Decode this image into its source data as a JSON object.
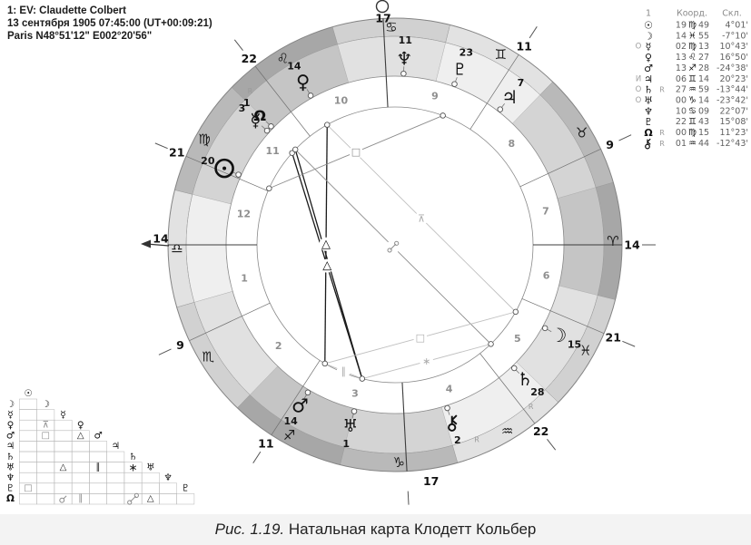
{
  "birth_info": {
    "line1": "1: EV: Claudette Colbert",
    "line2": "13 сентября 1905 07:45:00 (UT+00:09:21)",
    "line3": "Paris N48°51'12\" E002°20'56\""
  },
  "caption": {
    "figure_label": "Рис. 1.19.",
    "text": " Натальная карта Клодетт Кольбер"
  },
  "coord_table": {
    "headers": {
      "col1": "1",
      "col2": "Коорд.",
      "col3": "Скл."
    },
    "rows": [
      {
        "id": "sun",
        "marker": "",
        "glyph": "☉",
        "retro": "",
        "deg": "19",
        "sign": "♍",
        "min": "49",
        "decl": "4°01'"
      },
      {
        "id": "moon",
        "marker": "",
        "glyph": "☽",
        "retro": "",
        "deg": "14",
        "sign": "♓",
        "min": "55",
        "decl": "-7°10'"
      },
      {
        "id": "mercury",
        "marker": "O",
        "glyph": "☿",
        "retro": "",
        "deg": "02",
        "sign": "♍",
        "min": "13",
        "decl": "10°43'"
      },
      {
        "id": "venus",
        "marker": "",
        "glyph": "♀",
        "retro": "",
        "deg": "13",
        "sign": "♌",
        "min": "27",
        "decl": "16°50'"
      },
      {
        "id": "mars",
        "marker": "",
        "glyph": "♂",
        "retro": "",
        "deg": "13",
        "sign": "♐",
        "min": "28",
        "decl": "-24°38'"
      },
      {
        "id": "jupiter",
        "marker": "И",
        "glyph": "♃",
        "retro": "",
        "deg": "06",
        "sign": "♊",
        "min": "14",
        "decl": "20°23'"
      },
      {
        "id": "saturn",
        "marker": "O",
        "glyph": "♄",
        "retro": "R",
        "deg": "27",
        "sign": "♒",
        "min": "59",
        "decl": "-13°44'"
      },
      {
        "id": "uranus",
        "marker": "O",
        "glyph": "♅",
        "retro": "",
        "deg": "00",
        "sign": "♑",
        "min": "14",
        "decl": "-23°42'"
      },
      {
        "id": "neptune",
        "marker": "",
        "glyph": "♆",
        "retro": "",
        "deg": "10",
        "sign": "♋",
        "min": "09",
        "decl": "22°07'"
      },
      {
        "id": "pluto",
        "marker": "",
        "glyph": "♇",
        "retro": "",
        "deg": "22",
        "sign": "♊",
        "min": "43",
        "decl": "15°08'"
      },
      {
        "id": "node",
        "marker": "",
        "glyph": "Ω",
        "retro": "R",
        "deg": "00",
        "sign": "♍",
        "min": "15",
        "decl": "11°23'"
      },
      {
        "id": "chiron",
        "marker": "",
        "glyph": "chiron",
        "retro": "R",
        "deg": "01",
        "sign": "♒",
        "min": "44",
        "decl": "-12°43'"
      }
    ]
  },
  "wheel": {
    "signs": [
      {
        "name": "aries",
        "glyph": "♈",
        "element": "fire",
        "start": 0
      },
      {
        "name": "taurus",
        "glyph": "♉",
        "element": "earth",
        "start": 30
      },
      {
        "name": "gemini",
        "glyph": "♊",
        "element": "air",
        "start": 60
      },
      {
        "name": "cancer",
        "glyph": "♋",
        "element": "water",
        "start": 90
      },
      {
        "name": "leo",
        "glyph": "♌",
        "element": "fire",
        "start": 120
      },
      {
        "name": "virgo",
        "glyph": "♍",
        "element": "earth",
        "start": 150
      },
      {
        "name": "libra",
        "glyph": "♎",
        "element": "air",
        "start": 180
      },
      {
        "name": "scorpio",
        "glyph": "♏",
        "element": "water",
        "start": 210
      },
      {
        "name": "sagittarius",
        "glyph": "♐",
        "element": "fire",
        "start": 240
      },
      {
        "name": "capricorn",
        "glyph": "♑",
        "element": "earth",
        "start": 270
      },
      {
        "name": "aquarius",
        "glyph": "♒",
        "element": "air",
        "start": 300
      },
      {
        "name": "pisces",
        "glyph": "♓",
        "element": "water",
        "start": 330
      }
    ],
    "element_colors": {
      "fire_outer": "#a7a7a7",
      "fire_inner": "#c5c5c5",
      "earth_outer": "#b9b9b9",
      "earth_inner": "#d4d4d4",
      "air_outer": "#e2e2e2",
      "air_inner": "#efefef",
      "water_outer": "#d1d1d1",
      "water_inner": "#e1e1e1"
    },
    "house_cusps": [
      {
        "house": 1,
        "lon": 194,
        "label": "14",
        "axis": "ASC"
      },
      {
        "house": 2,
        "lon": 219,
        "label": "9"
      },
      {
        "house": 3,
        "lon": 251,
        "label": "11"
      },
      {
        "house": 4,
        "lon": 287,
        "label": "17",
        "axis": "IC"
      },
      {
        "house": 5,
        "lon": 322,
        "label": "22"
      },
      {
        "house": 6,
        "lon": 351,
        "label": "21"
      },
      {
        "house": 7,
        "lon": 14,
        "label": "14",
        "axis": "DSC"
      },
      {
        "house": 8,
        "lon": 39,
        "label": "9"
      },
      {
        "house": 9,
        "lon": 71,
        "label": "11"
      },
      {
        "house": 10,
        "lon": 107,
        "label": "17",
        "axis": "MC"
      },
      {
        "house": 11,
        "lon": 142,
        "label": "22"
      },
      {
        "house": 12,
        "lon": 171,
        "label": "21"
      }
    ],
    "house_numbers": [
      "1",
      "2",
      "3",
      "4",
      "5",
      "6",
      "7",
      "8",
      "9",
      "10",
      "11",
      "12"
    ],
    "planets": [
      {
        "id": "sun",
        "glyph": "☉",
        "lon": 169.82,
        "label": "20",
        "retro": false,
        "dot": true,
        "size": 20
      },
      {
        "id": "moon",
        "glyph": "☽",
        "lon": 344.92,
        "label": "15",
        "retro": false,
        "dot": true,
        "size": 21
      },
      {
        "id": "mercury",
        "glyph": "☿",
        "lon": 152.22,
        "label": "3",
        "retro": false,
        "dot": true,
        "size": 20
      },
      {
        "id": "venus",
        "glyph": "♀",
        "lon": 133.45,
        "label": "14",
        "retro": false,
        "dot": true,
        "size": 21
      },
      {
        "id": "mars",
        "glyph": "♂",
        "lon": 253.47,
        "label": "14",
        "retro": false,
        "dot": true,
        "size": 21
      },
      {
        "id": "jupiter",
        "glyph": "♃",
        "lon": 66.23,
        "label": "7",
        "retro": false,
        "dot": false,
        "size": 20
      },
      {
        "id": "saturn",
        "glyph": "♄",
        "lon": 327.98,
        "label": "28",
        "retro": true,
        "dot": true,
        "size": 20
      },
      {
        "id": "uranus",
        "glyph": "♅",
        "lon": 270.23,
        "label": "1",
        "retro": false,
        "dot": true,
        "size": 19
      },
      {
        "id": "neptune",
        "glyph": "♆",
        "lon": 101.15,
        "label": "11",
        "retro": false,
        "dot": false,
        "size": 20
      },
      {
        "id": "pluto",
        "glyph": "♇",
        "lon": 83.72,
        "label": "23",
        "retro": false,
        "dot": true,
        "size": 18
      },
      {
        "id": "node",
        "glyph": "Ω",
        "lon": 150.25,
        "label": "1",
        "retro": true,
        "dot": true,
        "size": 16
      },
      {
        "id": "chiron",
        "glyph": "chiron",
        "lon": 301.73,
        "label": "2",
        "retro": true,
        "dot": false,
        "size": 16
      }
    ],
    "aspects": [
      {
        "a": "venus",
        "b": "mars",
        "type": "trine",
        "glyph": "△",
        "tone": "strong"
      },
      {
        "a": "mercury",
        "b": "uranus",
        "type": "trine",
        "glyph": "△",
        "tone": "strong"
      },
      {
        "a": "node",
        "b": "uranus",
        "type": "trine",
        "glyph": "",
        "tone": "strong"
      },
      {
        "a": "sun",
        "b": "pluto",
        "type": "square",
        "glyph": "□",
        "tone": "mid"
      },
      {
        "a": "saturn",
        "b": "node",
        "type": "opposition",
        "glyph": "opp",
        "tone": "mid"
      },
      {
        "a": "moon",
        "b": "venus",
        "type": "quincunx",
        "glyph": "⊼",
        "tone": "light"
      },
      {
        "a": "moon",
        "b": "mars",
        "type": "square",
        "glyph": "□",
        "tone": "light"
      },
      {
        "a": "saturn",
        "b": "uranus",
        "type": "sextile",
        "glyph": "∗",
        "tone": "light"
      },
      {
        "a": "mars",
        "b": "uranus",
        "type": "parallel",
        "glyph": "∥",
        "tone": "light"
      }
    ]
  },
  "aspect_grid": {
    "col_headers": [
      "☉",
      "☽",
      "☿",
      "♀",
      "♂",
      "♃",
      "♄",
      "♅",
      "♆",
      "♇"
    ],
    "row_labels": [
      "☽",
      "☿",
      "♀",
      "♂",
      "♃",
      "♄",
      "♅",
      "♆",
      "♇",
      "Ω"
    ],
    "cells": [
      {
        "row": 3,
        "col": 2,
        "glyph": "⊼",
        "tone": "grey"
      },
      {
        "row": 4,
        "col": 2,
        "glyph": "□",
        "tone": "grey"
      },
      {
        "row": 4,
        "col": 4,
        "glyph": "△",
        "tone": "black"
      },
      {
        "row": 7,
        "col": 3,
        "glyph": "△",
        "tone": "black"
      },
      {
        "row": 7,
        "col": 5,
        "glyph": "∥",
        "tone": "black"
      },
      {
        "row": 7,
        "col": 7,
        "glyph": "∗",
        "tone": "black"
      },
      {
        "row": 9,
        "col": 1,
        "glyph": "□",
        "tone": "grey"
      },
      {
        "row": 10,
        "col": 3,
        "glyph": "conj",
        "tone": "grey"
      },
      {
        "row": 10,
        "col": 4,
        "glyph": "∥",
        "tone": "grey"
      },
      {
        "row": 10,
        "col": 7,
        "glyph": "opp",
        "tone": "grey"
      },
      {
        "row": 10,
        "col": 8,
        "glyph": "△",
        "tone": "black"
      }
    ]
  }
}
